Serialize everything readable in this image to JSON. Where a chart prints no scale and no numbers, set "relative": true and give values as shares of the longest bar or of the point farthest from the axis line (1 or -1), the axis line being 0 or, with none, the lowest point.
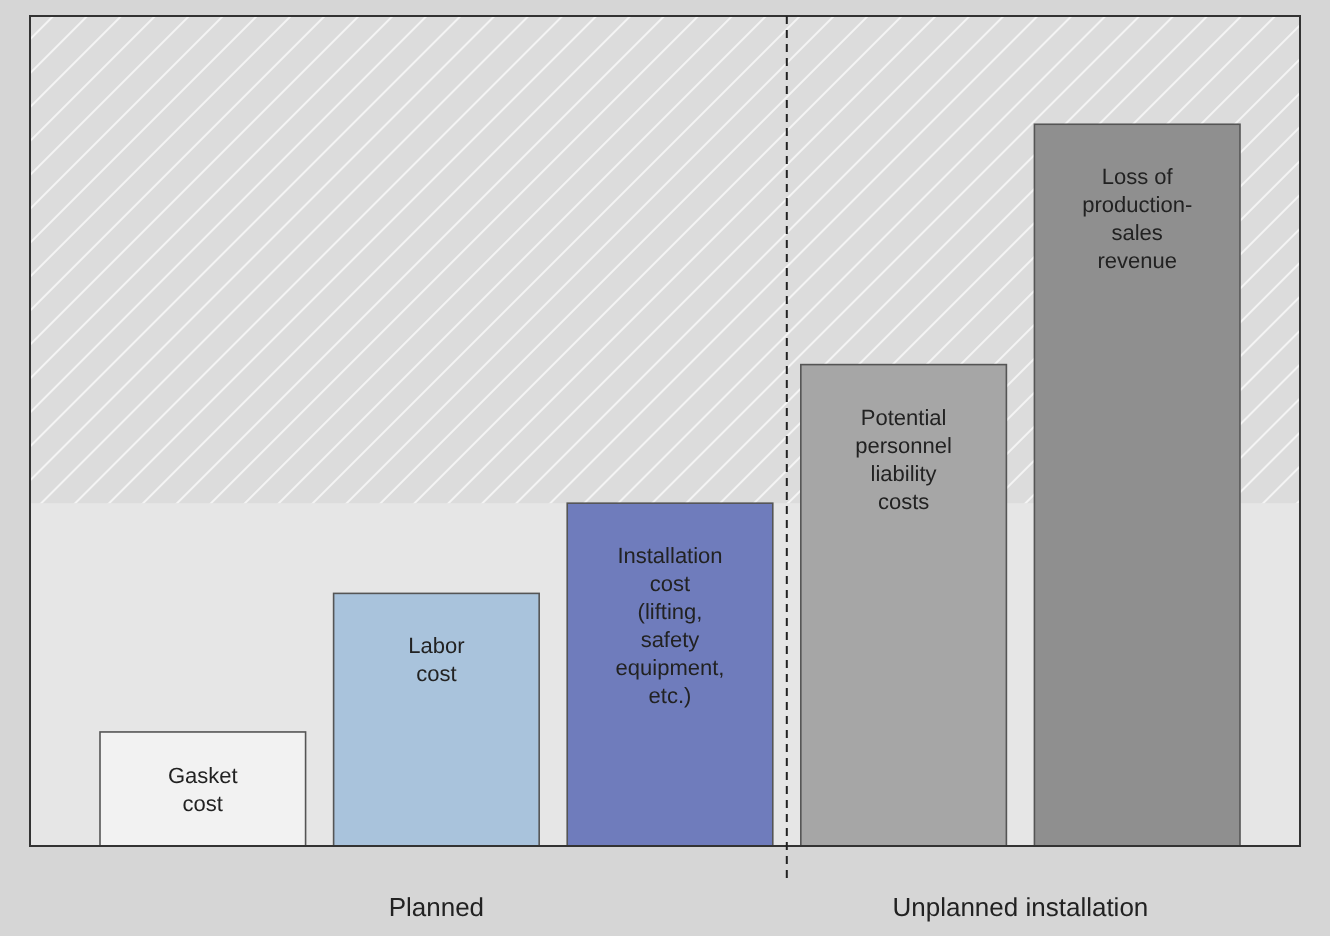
{
  "chart_data": {
    "type": "bar",
    "relative": true,
    "categories": [
      "Gasket\ncost",
      "Labor\ncost",
      "Installation\ncost\n(lifting,\nsafety\nequipment,\netc.)",
      "Potential\npersonnel\nliability\ncosts",
      "Loss of\nproduction-\nsales\nrevenue"
    ],
    "values": [
      0.158,
      0.35,
      0.475,
      0.667,
      1
    ],
    "colors": [
      "#f2f2f2",
      "#a9c3dc",
      "#6f7cbc",
      "#a6a6a6",
      "#8f8f8f"
    ],
    "bands": [
      {
        "axis": "y",
        "from": 0.475,
        "to": 1.15
      }
    ],
    "annotations": [
      "Planned",
      "Unplanned installation"
    ]
  }
}
